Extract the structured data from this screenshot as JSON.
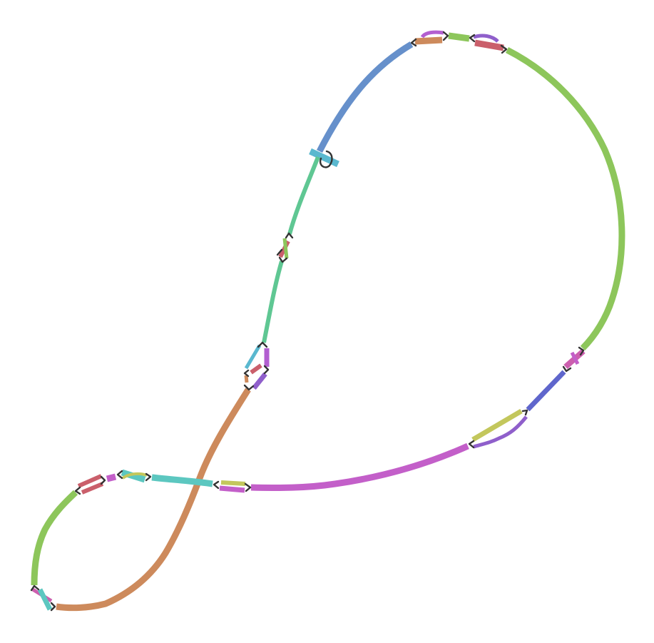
{
  "graph": {
    "kind": "assembly-graph",
    "colors": {
      "green": "#8dc65b",
      "blue": "#6690cb",
      "teal_green": "#5fc793",
      "teal": "#5cc7c0",
      "cyan_blue": "#5ab8cf",
      "orange_brown": "#cd8a5c",
      "magenta": "#c35fc9",
      "indigo": "#5f66cc",
      "olive": "#c3c75c",
      "red": "#ca5f6b",
      "purple": "#8f5fcb",
      "pink": "#cc5fae",
      "violet": "#b35fd0",
      "link": "#333333"
    }
  }
}
